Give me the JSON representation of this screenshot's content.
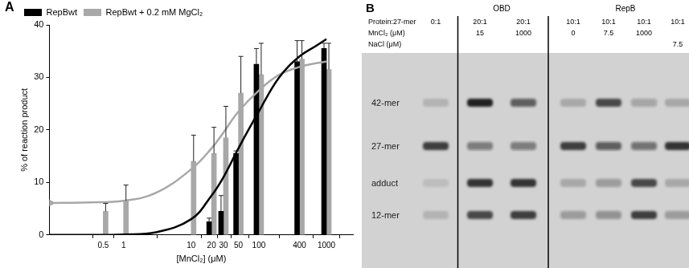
{
  "chart_data": {
    "type": "bar",
    "panel": "A",
    "x_label": "[MnCl₂] (μM)",
    "y_label": "% of reaction product",
    "log": "x",
    "grid": false,
    "legend": "top-left",
    "xlim": [
      0.08,
      2500
    ],
    "xticks": [
      0.5,
      1,
      10,
      20,
      30,
      50,
      100,
      400,
      1000
    ],
    "ylim": [
      0,
      40
    ],
    "yticks": [
      0,
      10,
      20,
      30,
      40
    ],
    "series": [
      {
        "name": "RepBwt",
        "color": "#000000",
        "type": "bar",
        "x": [
          20,
          30,
          50,
          100,
          400,
          1000
        ],
        "values": [
          2.5,
          4.5,
          15.5,
          32.5,
          33,
          35.5
        ],
        "errors": [
          0.7,
          3,
          0.5,
          3,
          4,
          1
        ],
        "fit": {
          "type": "line",
          "x": [
            0.08,
            0.3,
            1,
            3,
            10,
            20,
            30,
            50,
            100,
            200,
            400,
            700,
            1000
          ],
          "values": [
            0,
            0,
            0.1,
            0.5,
            3,
            7.5,
            11,
            16.5,
            23.5,
            30,
            34,
            36,
            37.3
          ]
        }
      },
      {
        "name": "RepBwt + 0.2 mM MgCl₂",
        "color": "#a8a8a8",
        "type": "bar",
        "x": [
          0.5,
          1,
          10,
          20,
          30,
          50,
          100,
          400,
          1000
        ],
        "values": [
          4.5,
          6.5,
          14,
          15.5,
          18.5,
          27,
          30.5,
          33.5,
          31.5
        ],
        "errors": [
          1.5,
          3,
          5,
          5,
          6,
          7,
          6,
          3.5,
          5
        ],
        "fit": {
          "type": "line",
          "marker": "arrow",
          "x": [
            0.08,
            0.3,
            1,
            3,
            10,
            20,
            30,
            50,
            100,
            200,
            400,
            700,
            1000
          ],
          "values": [
            6.1,
            6.2,
            6.5,
            8,
            12.5,
            16.5,
            19.5,
            23.5,
            27.5,
            30.5,
            32,
            32.7,
            33
          ]
        }
      }
    ]
  },
  "gel": {
    "panel": "B",
    "row_labels": [
      "Protein:27-mer",
      "MnCl₂ (μM)",
      "NaCl (μM)"
    ],
    "band_labels": [
      "42-mer",
      "27-mer",
      "adduct",
      "12-mer"
    ],
    "groups": [
      {
        "label": "OBD",
        "lanes": [
          1,
          2
        ]
      },
      {
        "label": "RepB",
        "lanes": [
          3,
          4,
          5,
          6
        ]
      }
    ],
    "lanes": [
      {
        "ratio": "0:1",
        "MnCl₂": null,
        "NaCl": null,
        "bands": [
          0.15,
          0.8,
          0.1,
          0.15
        ]
      },
      {
        "ratio": "20:1",
        "MnCl₂": "15",
        "NaCl": null,
        "bands": [
          0.95,
          0.45,
          0.85,
          0.75
        ]
      },
      {
        "ratio": "20:1",
        "MnCl₂": "1000",
        "NaCl": null,
        "bands": [
          0.6,
          0.45,
          0.85,
          0.8
        ]
      },
      {
        "ratio": "10:1",
        "MnCl₂": "0",
        "NaCl": null,
        "bands": [
          0.2,
          0.8,
          0.2,
          0.3
        ]
      },
      {
        "ratio": "10:1",
        "MnCl₂": "7.5",
        "NaCl": null,
        "bands": [
          0.75,
          0.6,
          0.3,
          0.35
        ]
      },
      {
        "ratio": "10:1",
        "MnCl₂": "1000",
        "NaCl": null,
        "bands": [
          0.25,
          0.5,
          0.75,
          0.8
        ]
      },
      {
        "ratio": "10:1",
        "MnCl₂": null,
        "NaCl": "7.5",
        "bands": [
          0.2,
          0.85,
          0.2,
          0.3
        ]
      }
    ]
  }
}
